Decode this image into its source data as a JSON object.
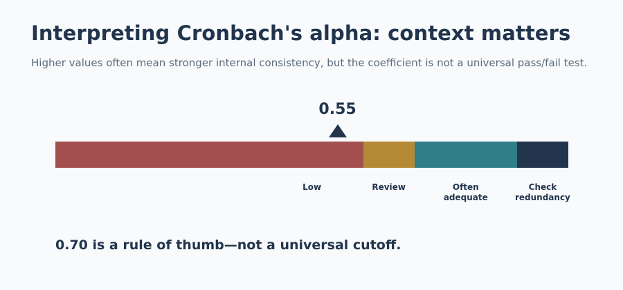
{
  "title": "Interpreting Cronbach's alpha: context matters",
  "subtitle": "Higher values often mean stronger internal consistency, but the coefficient is not a universal pass/fail test.",
  "marker": {
    "value": 0.55,
    "label": "0.55",
    "color": "#22354d"
  },
  "scale": {
    "min": 0,
    "max": 1,
    "zones": [
      {
        "label": "Low",
        "from": 0,
        "to": 0.6,
        "color": "#a34f4f"
      },
      {
        "label": "Review",
        "from": 0.6,
        "to": 0.7,
        "color": "#b58a36"
      },
      {
        "label": "Often\nadequate",
        "from": 0.7,
        "to": 0.9,
        "color": "#2f7e88"
      },
      {
        "label": "Check\nredundancy",
        "from": 0.9,
        "to": 1,
        "color": "#22354d"
      }
    ]
  },
  "footnote": "0.70 is a rule of thumb—not a universal cutoff."
}
